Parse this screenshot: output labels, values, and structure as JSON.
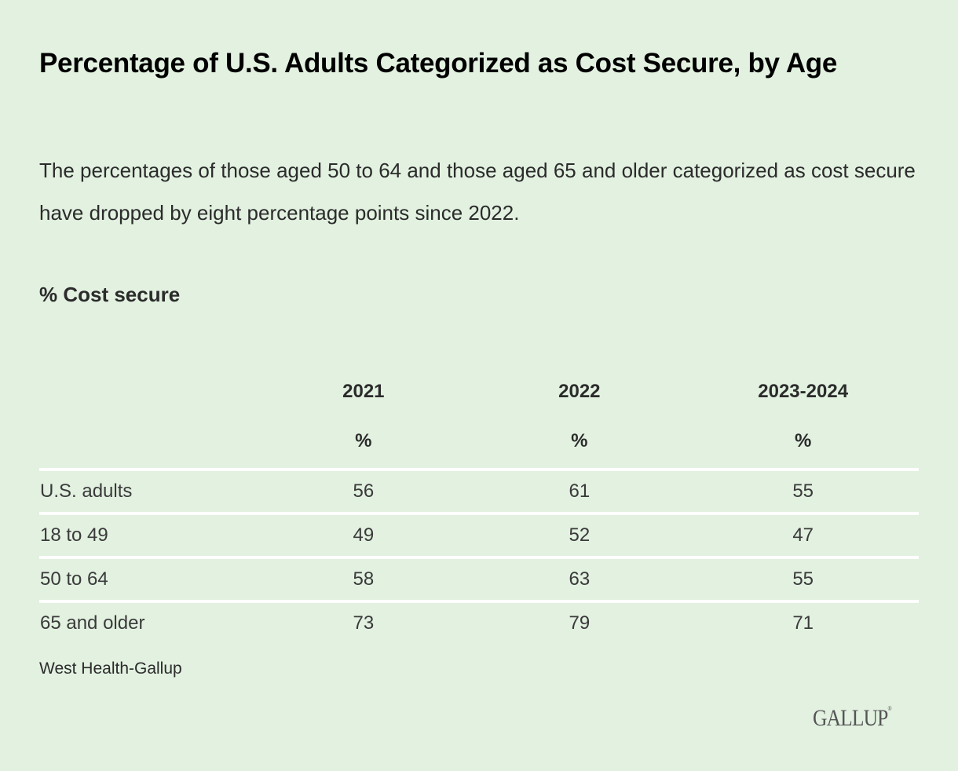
{
  "title": "Percentage of U.S. Adults Categorized as Cost Secure, by Age",
  "subtitle": "The percentages of those aged 50 to 64 and those aged 65 and older categorized as cost secure have dropped by eight percentage points since 2022.",
  "measure_label": "% Cost secure",
  "source": "West Health-Gallup",
  "logo": "GALLUP",
  "chart_data": {
    "type": "table",
    "title": "Percentage of U.S. Adults Categorized as Cost Secure, by Age",
    "columns": [
      "2021",
      "2022",
      "2023-2024"
    ],
    "unit_row": [
      "%",
      "%",
      "%"
    ],
    "rows": [
      {
        "label": "U.S. adults",
        "values": [
          "56",
          "61",
          "55"
        ]
      },
      {
        "label": "18 to 49",
        "values": [
          "49",
          "52",
          "47"
        ]
      },
      {
        "label": "50 to 64",
        "values": [
          "58",
          "63",
          "55"
        ]
      },
      {
        "label": "65 and older",
        "values": [
          "73",
          "79",
          "71"
        ]
      }
    ]
  }
}
